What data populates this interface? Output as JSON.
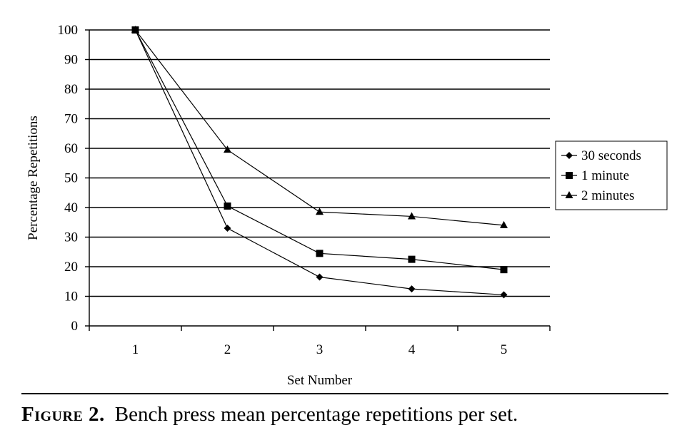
{
  "chart_data": {
    "type": "line",
    "x": [
      1,
      2,
      3,
      4,
      5
    ],
    "series": [
      {
        "name": "30 seconds",
        "marker": "diamond",
        "values": [
          100,
          33,
          16.5,
          12.5,
          10.5
        ]
      },
      {
        "name": "1 minute",
        "marker": "square",
        "values": [
          100,
          40.5,
          24.5,
          22.5,
          19
        ]
      },
      {
        "name": "2 minutes",
        "marker": "triangle",
        "values": [
          100,
          59.5,
          38.5,
          37,
          34
        ]
      }
    ],
    "xlabel": "Set Number",
    "ylabel": "Percentage Repetitions",
    "ylim": [
      0,
      100
    ],
    "yticks": [
      0,
      10,
      20,
      30,
      40,
      50,
      60,
      70,
      80,
      90,
      100
    ],
    "xticks": [
      "1",
      "2",
      "3",
      "4",
      "5"
    ],
    "grid": true,
    "legend": "right",
    "color": "#000000"
  },
  "caption": {
    "label": "Figure 2.",
    "text": "Bench press mean percentage repetitions per set."
  }
}
